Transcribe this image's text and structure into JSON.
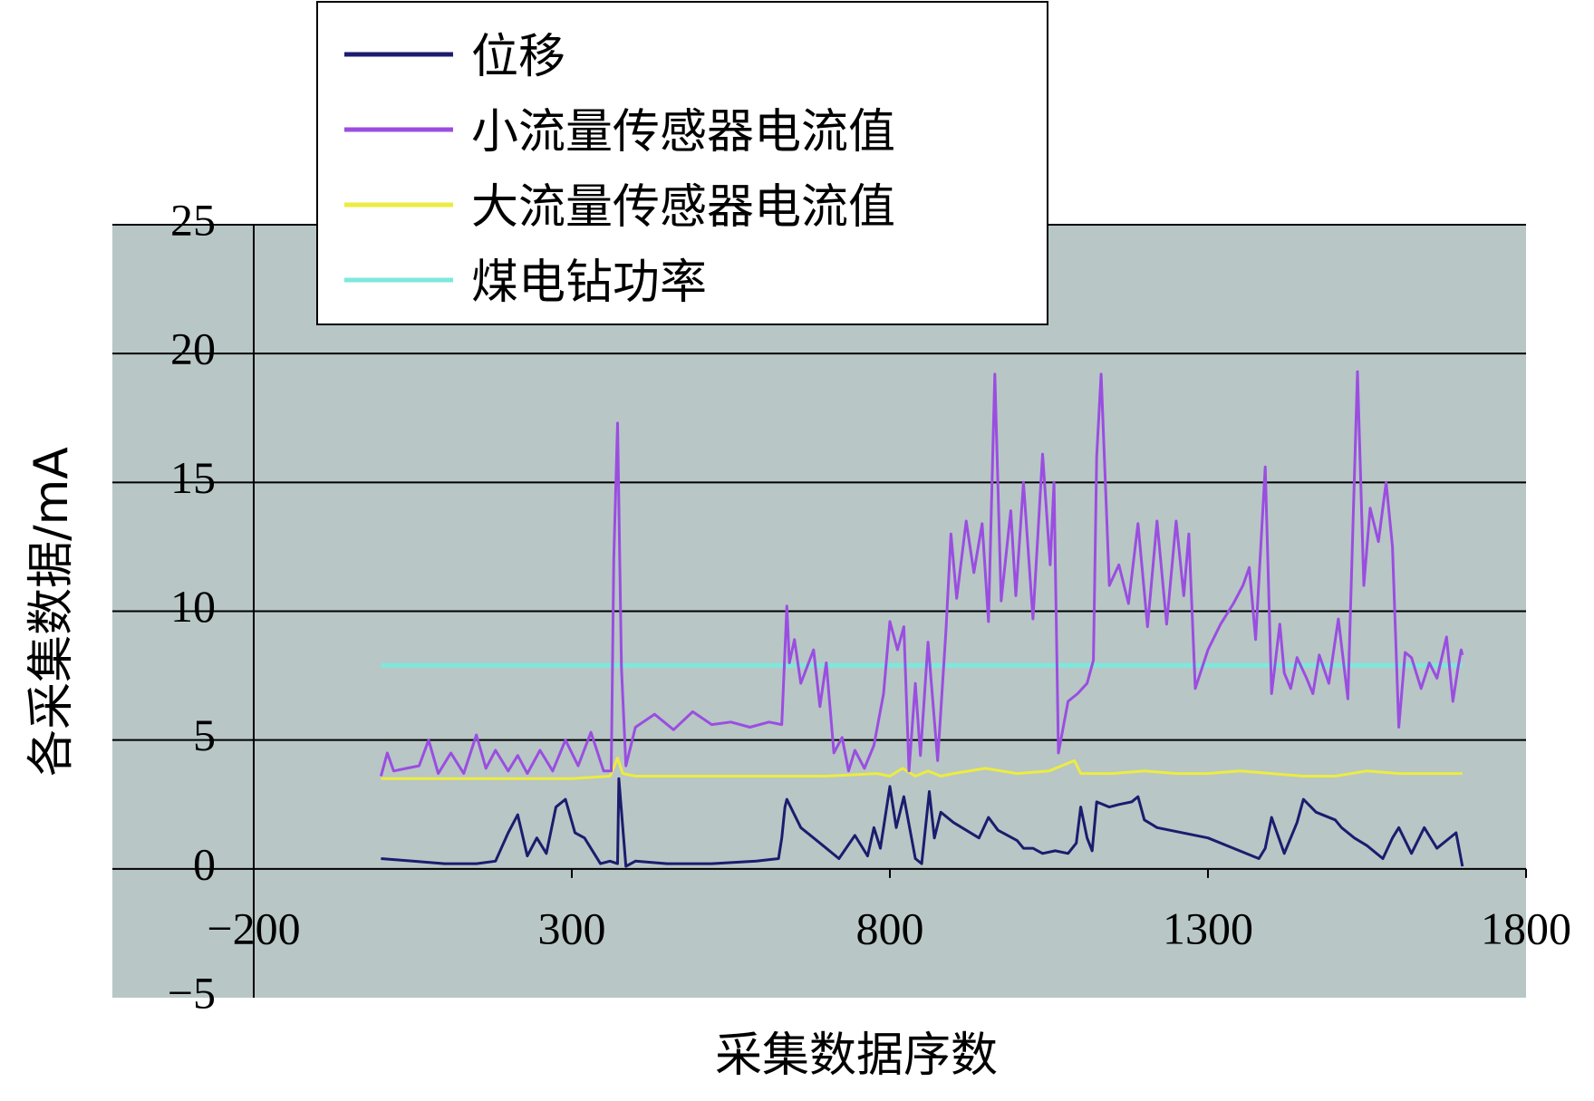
{
  "chart_data": {
    "type": "line",
    "xlabel": "采集数据序数",
    "ylabel": "各采集数据/mA",
    "xlim": [
      -200,
      1800
    ],
    "ylim": [
      -5,
      25
    ],
    "x_ticks": [
      -200,
      300,
      800,
      1300,
      1800
    ],
    "y_ticks": [
      -5,
      0,
      5,
      10,
      15,
      20,
      25
    ],
    "grid": "horizontal",
    "legend_position": "top-left",
    "plot_background": "#b8c6c6",
    "series": [
      {
        "name": "位移",
        "color": "#1c1c6e",
        "x": [
          0,
          50,
          100,
          150,
          180,
          200,
          215,
          230,
          245,
          260,
          275,
          290,
          305,
          320,
          345,
          360,
          372,
          374,
          385,
          400,
          450,
          520,
          590,
          625,
          630,
          635,
          638,
          660,
          700,
          720,
          745,
          765,
          775,
          785,
          800,
          810,
          822,
          840,
          850,
          862,
          870,
          880,
          900,
          940,
          955,
          970,
          1000,
          1010,
          1025,
          1040,
          1060,
          1080,
          1093,
          1100,
          1110,
          1118,
          1125,
          1145,
          1160,
          1180,
          1190,
          1200,
          1220,
          1300,
          1380,
          1390,
          1400,
          1420,
          1440,
          1450,
          1462,
          1470,
          1500,
          1510,
          1530,
          1550,
          1575,
          1590,
          1600,
          1620,
          1640,
          1660,
          1690,
          1700
        ],
        "y": [
          0.4,
          0.3,
          0.2,
          0.2,
          0.3,
          1.4,
          2.1,
          0.5,
          1.2,
          0.6,
          2.4,
          2.7,
          1.4,
          1.2,
          0.2,
          0.3,
          0.2,
          3.5,
          0.1,
          0.3,
          0.2,
          0.2,
          0.3,
          0.4,
          1.2,
          2.4,
          2.7,
          1.6,
          0.8,
          0.4,
          1.3,
          0.5,
          1.6,
          0.8,
          3.2,
          1.6,
          2.8,
          0.4,
          0.2,
          3.0,
          1.2,
          2.2,
          1.8,
          1.2,
          2.0,
          1.5,
          1.1,
          0.8,
          0.8,
          0.6,
          0.7,
          0.6,
          1.0,
          2.4,
          1.2,
          0.7,
          2.6,
          2.4,
          2.5,
          2.6,
          2.8,
          1.9,
          1.6,
          1.2,
          0.4,
          0.8,
          2.0,
          0.6,
          1.8,
          2.7,
          2.4,
          2.2,
          1.9,
          1.6,
          1.2,
          0.9,
          0.4,
          1.2,
          1.6,
          0.6,
          1.6,
          0.8,
          1.4,
          0.1
        ]
      },
      {
        "name": "小流量传感器电流值",
        "color": "#9a4ee0",
        "x": [
          0,
          10,
          20,
          40,
          60,
          75,
          90,
          110,
          130,
          150,
          165,
          180,
          200,
          215,
          230,
          250,
          270,
          290,
          310,
          330,
          350,
          362,
          366,
          372,
          378,
          385,
          400,
          430,
          460,
          490,
          520,
          550,
          580,
          610,
          630,
          638,
          642,
          650,
          660,
          680,
          690,
          700,
          712,
          725,
          735,
          745,
          760,
          775,
          790,
          800,
          812,
          822,
          830,
          840,
          848,
          860,
          875,
          888,
          896,
          905,
          920,
          932,
          945,
          955,
          965,
          975,
          990,
          998,
          1010,
          1025,
          1040,
          1052,
          1058,
          1065,
          1080,
          1095,
          1110,
          1120,
          1125,
          1132,
          1145,
          1160,
          1175,
          1190,
          1205,
          1220,
          1235,
          1250,
          1262,
          1270,
          1280,
          1300,
          1320,
          1340,
          1355,
          1365,
          1375,
          1390,
          1400,
          1413,
          1420,
          1430,
          1440,
          1455,
          1465,
          1475,
          1490,
          1505,
          1520,
          1535,
          1545,
          1555,
          1568,
          1580,
          1590,
          1600,
          1610,
          1620,
          1635,
          1648,
          1660,
          1675,
          1685,
          1693,
          1698,
          1700
        ],
        "y": [
          3.6,
          4.5,
          3.8,
          3.9,
          4.0,
          5.0,
          3.7,
          4.5,
          3.7,
          5.2,
          3.9,
          4.6,
          3.8,
          4.4,
          3.7,
          4.6,
          3.8,
          5.0,
          4.0,
          5.3,
          3.8,
          3.8,
          12.0,
          17.3,
          7.8,
          4.0,
          5.5,
          6.0,
          5.4,
          6.1,
          5.6,
          5.7,
          5.5,
          5.7,
          5.6,
          10.2,
          8.0,
          8.9,
          7.2,
          8.5,
          6.3,
          8.0,
          4.5,
          5.1,
          3.8,
          4.6,
          3.9,
          4.8,
          6.8,
          9.6,
          8.5,
          9.4,
          3.8,
          7.2,
          4.4,
          8.8,
          4.2,
          9.2,
          13.0,
          10.5,
          13.5,
          11.5,
          13.4,
          9.6,
          19.2,
          10.4,
          13.9,
          10.6,
          15.0,
          9.7,
          16.1,
          11.8,
          15.0,
          4.5,
          6.5,
          6.8,
          7.2,
          8.1,
          16.0,
          19.2,
          11.0,
          11.8,
          10.3,
          13.4,
          9.4,
          13.5,
          9.5,
          13.5,
          10.6,
          13.0,
          7.0,
          8.5,
          9.5,
          10.3,
          11.0,
          11.7,
          8.9,
          15.6,
          6.8,
          9.5,
          7.6,
          7.0,
          8.2,
          7.4,
          6.8,
          8.3,
          7.2,
          9.7,
          6.6,
          19.3,
          11.0,
          14.0,
          12.7,
          15.0,
          12.5,
          5.5,
          8.4,
          8.2,
          7.0,
          8.0,
          7.4,
          9.0,
          6.5,
          7.8,
          8.5,
          8.3
        ]
      },
      {
        "name": "大流量传感器电流值",
        "color": "#ecec40",
        "x": [
          0,
          100,
          200,
          300,
          360,
          372,
          380,
          400,
          500,
          600,
          700,
          780,
          800,
          820,
          840,
          860,
          880,
          900,
          950,
          1000,
          1050,
          1090,
          1100,
          1150,
          1200,
          1250,
          1300,
          1350,
          1400,
          1450,
          1500,
          1550,
          1600,
          1650,
          1700
        ],
        "y": [
          3.5,
          3.5,
          3.5,
          3.5,
          3.6,
          4.3,
          3.7,
          3.6,
          3.6,
          3.6,
          3.6,
          3.7,
          3.6,
          3.9,
          3.6,
          3.8,
          3.6,
          3.7,
          3.9,
          3.7,
          3.8,
          4.2,
          3.7,
          3.7,
          3.8,
          3.7,
          3.7,
          3.8,
          3.7,
          3.6,
          3.6,
          3.8,
          3.7,
          3.7,
          3.7
        ]
      },
      {
        "name": "煤电钻功率",
        "color": "#7ee8dc",
        "x": [
          0,
          100,
          200,
          300,
          400,
          500,
          600,
          700,
          800,
          900,
          1000,
          1100,
          1200,
          1300,
          1400,
          1500,
          1600,
          1700
        ],
        "y": [
          7.9,
          7.9,
          7.9,
          7.9,
          7.9,
          7.9,
          7.9,
          7.9,
          7.9,
          7.9,
          7.9,
          7.9,
          7.9,
          7.9,
          7.9,
          7.9,
          7.9,
          7.9
        ]
      }
    ]
  }
}
